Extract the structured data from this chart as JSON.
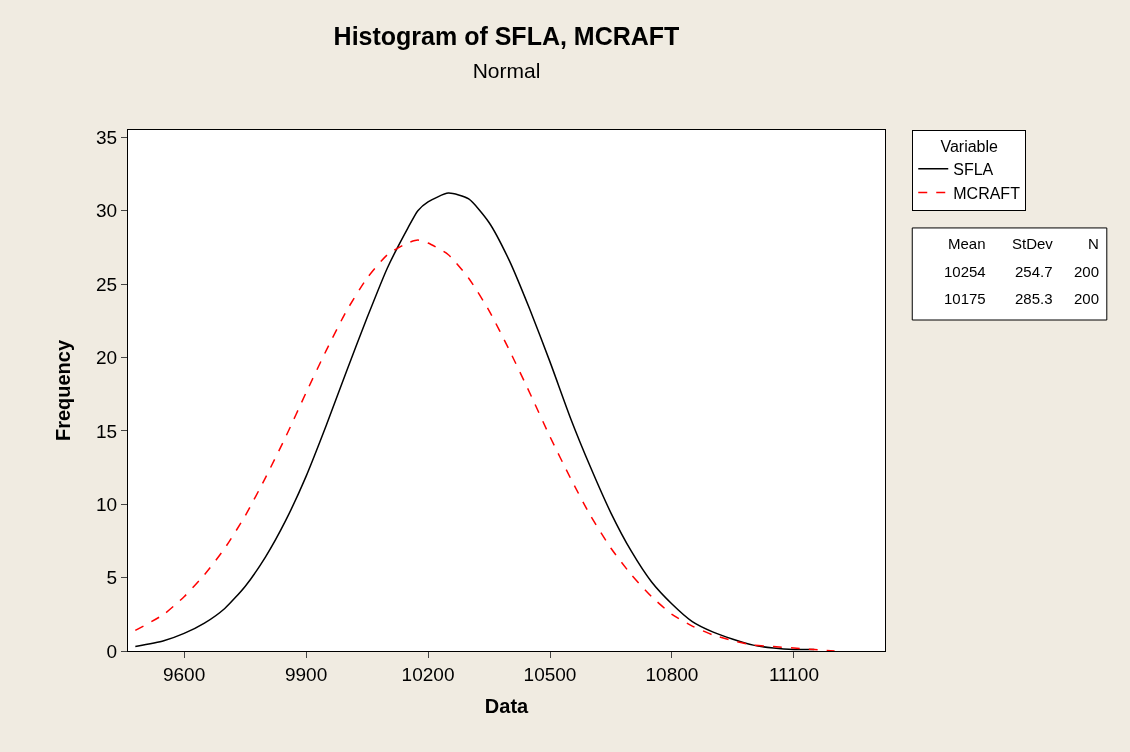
{
  "chart_data": {
    "type": "line",
    "title": "Histogram of SFLA, MCRAFT",
    "subtitle": "Normal",
    "xlabel": "Data",
    "ylabel": "Frequency",
    "legend_title": "Variable",
    "x": [
      9480,
      9550,
      9600,
      9650,
      9700,
      9750,
      9800,
      9850,
      9900,
      9950,
      10000,
      10050,
      10100,
      10150,
      10175,
      10200,
      10250,
      10300,
      10350,
      10400,
      10450,
      10500,
      10550,
      10600,
      10650,
      10700,
      10750,
      10800,
      10850,
      10900,
      10950,
      11000,
      11050,
      11100,
      11150,
      11200
    ],
    "series": [
      {
        "name": "SFLA",
        "color": "#000000",
        "line_style": "solid",
        "values": [
          0.3,
          0.7,
          1.2,
          1.9,
          2.9,
          4.4,
          6.4,
          8.9,
          11.9,
          15.4,
          19.1,
          22.7,
          26.1,
          28.8,
          30.0,
          30.6,
          31.2,
          30.8,
          29.2,
          26.6,
          23.3,
          19.7,
          15.9,
          12.5,
          9.4,
          6.8,
          4.7,
          3.2,
          2.0,
          1.3,
          0.8,
          0.4,
          0.2,
          0.1,
          0.1,
          null
        ]
      },
      {
        "name": "MCRAFT",
        "color": "#ff0000",
        "line_style": "dashed",
        "values": [
          1.4,
          2.5,
          3.7,
          5.2,
          7.0,
          9.2,
          11.8,
          14.6,
          17.6,
          20.5,
          23.2,
          25.4,
          27.0,
          27.8,
          28.0,
          27.8,
          27.0,
          25.4,
          23.2,
          20.5,
          17.6,
          14.6,
          11.8,
          9.2,
          7.0,
          5.2,
          3.7,
          2.5,
          1.7,
          1.1,
          0.7,
          0.4,
          0.3,
          0.2,
          0.1,
          0.0
        ]
      }
    ],
    "xlim": [
      9462,
      11324
    ],
    "ylim": [
      0,
      35.5
    ],
    "xticks": [
      9600,
      9900,
      10200,
      10500,
      10800,
      11100
    ],
    "yticks": [
      0,
      5,
      10,
      15,
      20,
      25,
      30,
      35
    ],
    "legend": "right",
    "marker": "none",
    "annotations": [
      "Mean",
      "StDev",
      "N",
      "10254",
      "254.7",
      "200",
      "10175",
      "285.3",
      "200"
    ]
  }
}
